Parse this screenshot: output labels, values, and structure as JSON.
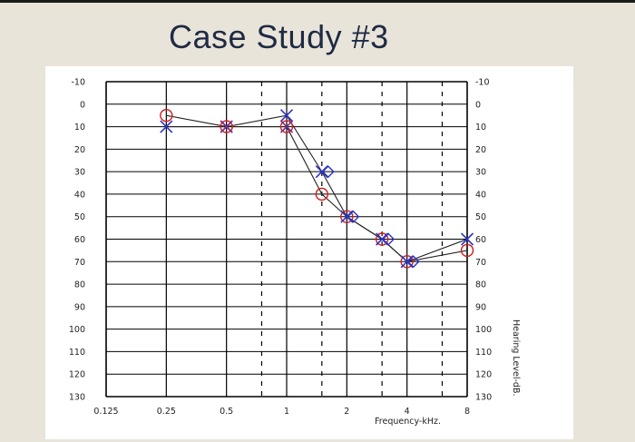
{
  "slide": {
    "title": "Case Study #3"
  },
  "chart_data": {
    "type": "scatter",
    "subtype": "audiogram",
    "title": "",
    "xlabel": "Frequency-kHz.",
    "ylabel": "Hearing Level-dB.",
    "x_scale": "log",
    "y_inverted": true,
    "ylim": [
      -10,
      130
    ],
    "y_ticks": [
      -10,
      0,
      10,
      20,
      30,
      40,
      50,
      60,
      70,
      80,
      90,
      100,
      110,
      120,
      130
    ],
    "y_tick_labels": [
      "-10",
      "0",
      "10",
      "20",
      "30",
      "40",
      "50",
      "60",
      "70",
      "80",
      "90",
      "100",
      "110",
      "120",
      "130"
    ],
    "x_ticks": [
      0.125,
      0.25,
      0.5,
      1,
      2,
      4,
      8
    ],
    "x_tick_labels": [
      "0.125",
      "0.25",
      "0.5",
      "1",
      "2",
      "4",
      "8"
    ],
    "x_dashed_gridlines": [
      0.75,
      1.5,
      3,
      6
    ],
    "grid": true,
    "series": [
      {
        "name": "",
        "marker": "circle",
        "color": "#d21b1b",
        "x": [
          0.25,
          0.5,
          1,
          1.5,
          2,
          3,
          4,
          8
        ],
        "y": [
          5,
          10,
          10,
          40,
          50,
          60,
          70,
          65
        ]
      },
      {
        "name": "",
        "marker": "x",
        "color": "#2c34c9",
        "x": [
          0.25,
          0.5,
          1,
          1.5,
          2,
          3,
          4,
          8
        ],
        "y": [
          10,
          10,
          5,
          30,
          50,
          60,
          70,
          60
        ]
      },
      {
        "name": "",
        "marker": "x",
        "color": "#7a2a8a",
        "x": [
          0.5,
          1
        ],
        "y": [
          10,
          10
        ]
      },
      {
        "name": "",
        "marker": "diamond",
        "color": "#2c34c9",
        "x": [
          1.5,
          2,
          3,
          4
        ],
        "y": [
          30,
          50,
          60,
          70
        ]
      }
    ]
  }
}
